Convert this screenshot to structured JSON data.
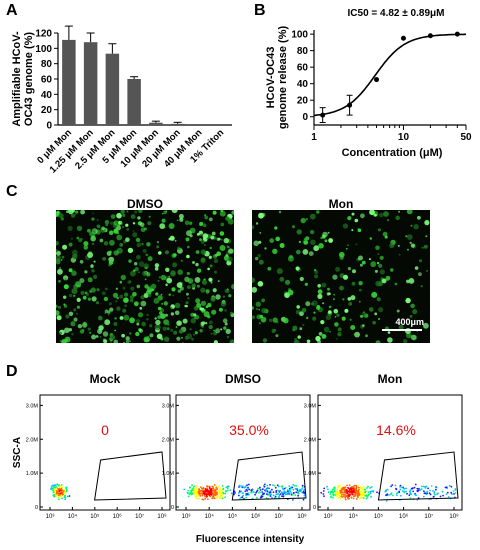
{
  "panels": {
    "A": "A",
    "B": "B",
    "C": "C",
    "D": "D"
  },
  "chart_data": [
    {
      "panel": "A",
      "type": "bar",
      "ylabel": "Amplifiable HCoV-\nOC43 genome (%)",
      "ylabel_lines": [
        "Amplifiable HCoV-",
        "OC43 genome (%)"
      ],
      "ylim": [
        0,
        120
      ],
      "yticks": [
        0,
        20,
        40,
        60,
        80,
        100,
        120
      ],
      "categories": [
        "0 μM Mon",
        "1.25 μM Mon",
        "2.5 μM Mon",
        "5 μM Mon",
        "10 μM Mon",
        "20 μM Mon",
        "40 μM Mon",
        "1% Triton"
      ],
      "values": [
        111,
        108,
        93,
        60,
        3,
        1.5,
        0,
        0
      ],
      "errors": [
        18,
        12,
        13,
        3,
        2,
        2,
        0,
        0
      ],
      "bar_color": "#555555"
    },
    {
      "panel": "B",
      "type": "scatter",
      "title": "IC50 = 4.82 ± 0.89μM",
      "xlabel": "Concentration (μM)",
      "ylabel_lines": [
        "HCoV-OC43",
        "genome release (%)"
      ],
      "xscale": "log",
      "xlim": [
        1,
        50
      ],
      "xticks": [
        1,
        10,
        50
      ],
      "ylim": [
        -10,
        105
      ],
      "yticks": [
        0,
        20,
        40,
        60,
        80,
        100
      ],
      "x": [
        1.25,
        2.5,
        5,
        10,
        20,
        40
      ],
      "y": [
        2,
        14,
        45,
        95,
        98,
        100
      ],
      "errors": [
        9,
        12,
        0,
        0,
        0,
        0
      ],
      "fit": {
        "ic50": 4.82,
        "hill": 2.6,
        "top": 100,
        "bottom": 0
      }
    },
    {
      "panel": "D",
      "type": "scatter",
      "xlabel": "Fluorescence intensity",
      "ylabel": "SSC-A",
      "yticks": [
        "0",
        "1.0M",
        "2.0M",
        "3.0M"
      ],
      "xticks": [
        "10³",
        "10⁴",
        "10⁵",
        "10⁶",
        "10⁷",
        "10⁸"
      ],
      "plots": [
        {
          "name": "Mock",
          "percent": "0"
        },
        {
          "name": "DMSO",
          "percent": "35.0%"
        },
        {
          "name": "Mon",
          "percent": "14.6%"
        }
      ]
    }
  ],
  "microscopy": {
    "left_title": "DMSO",
    "right_title": "Mon",
    "scale_bar": "400μm"
  },
  "colors": {
    "bar": "#555555",
    "percent_text": "#e01010",
    "fluor_green": "#3cff3c"
  }
}
